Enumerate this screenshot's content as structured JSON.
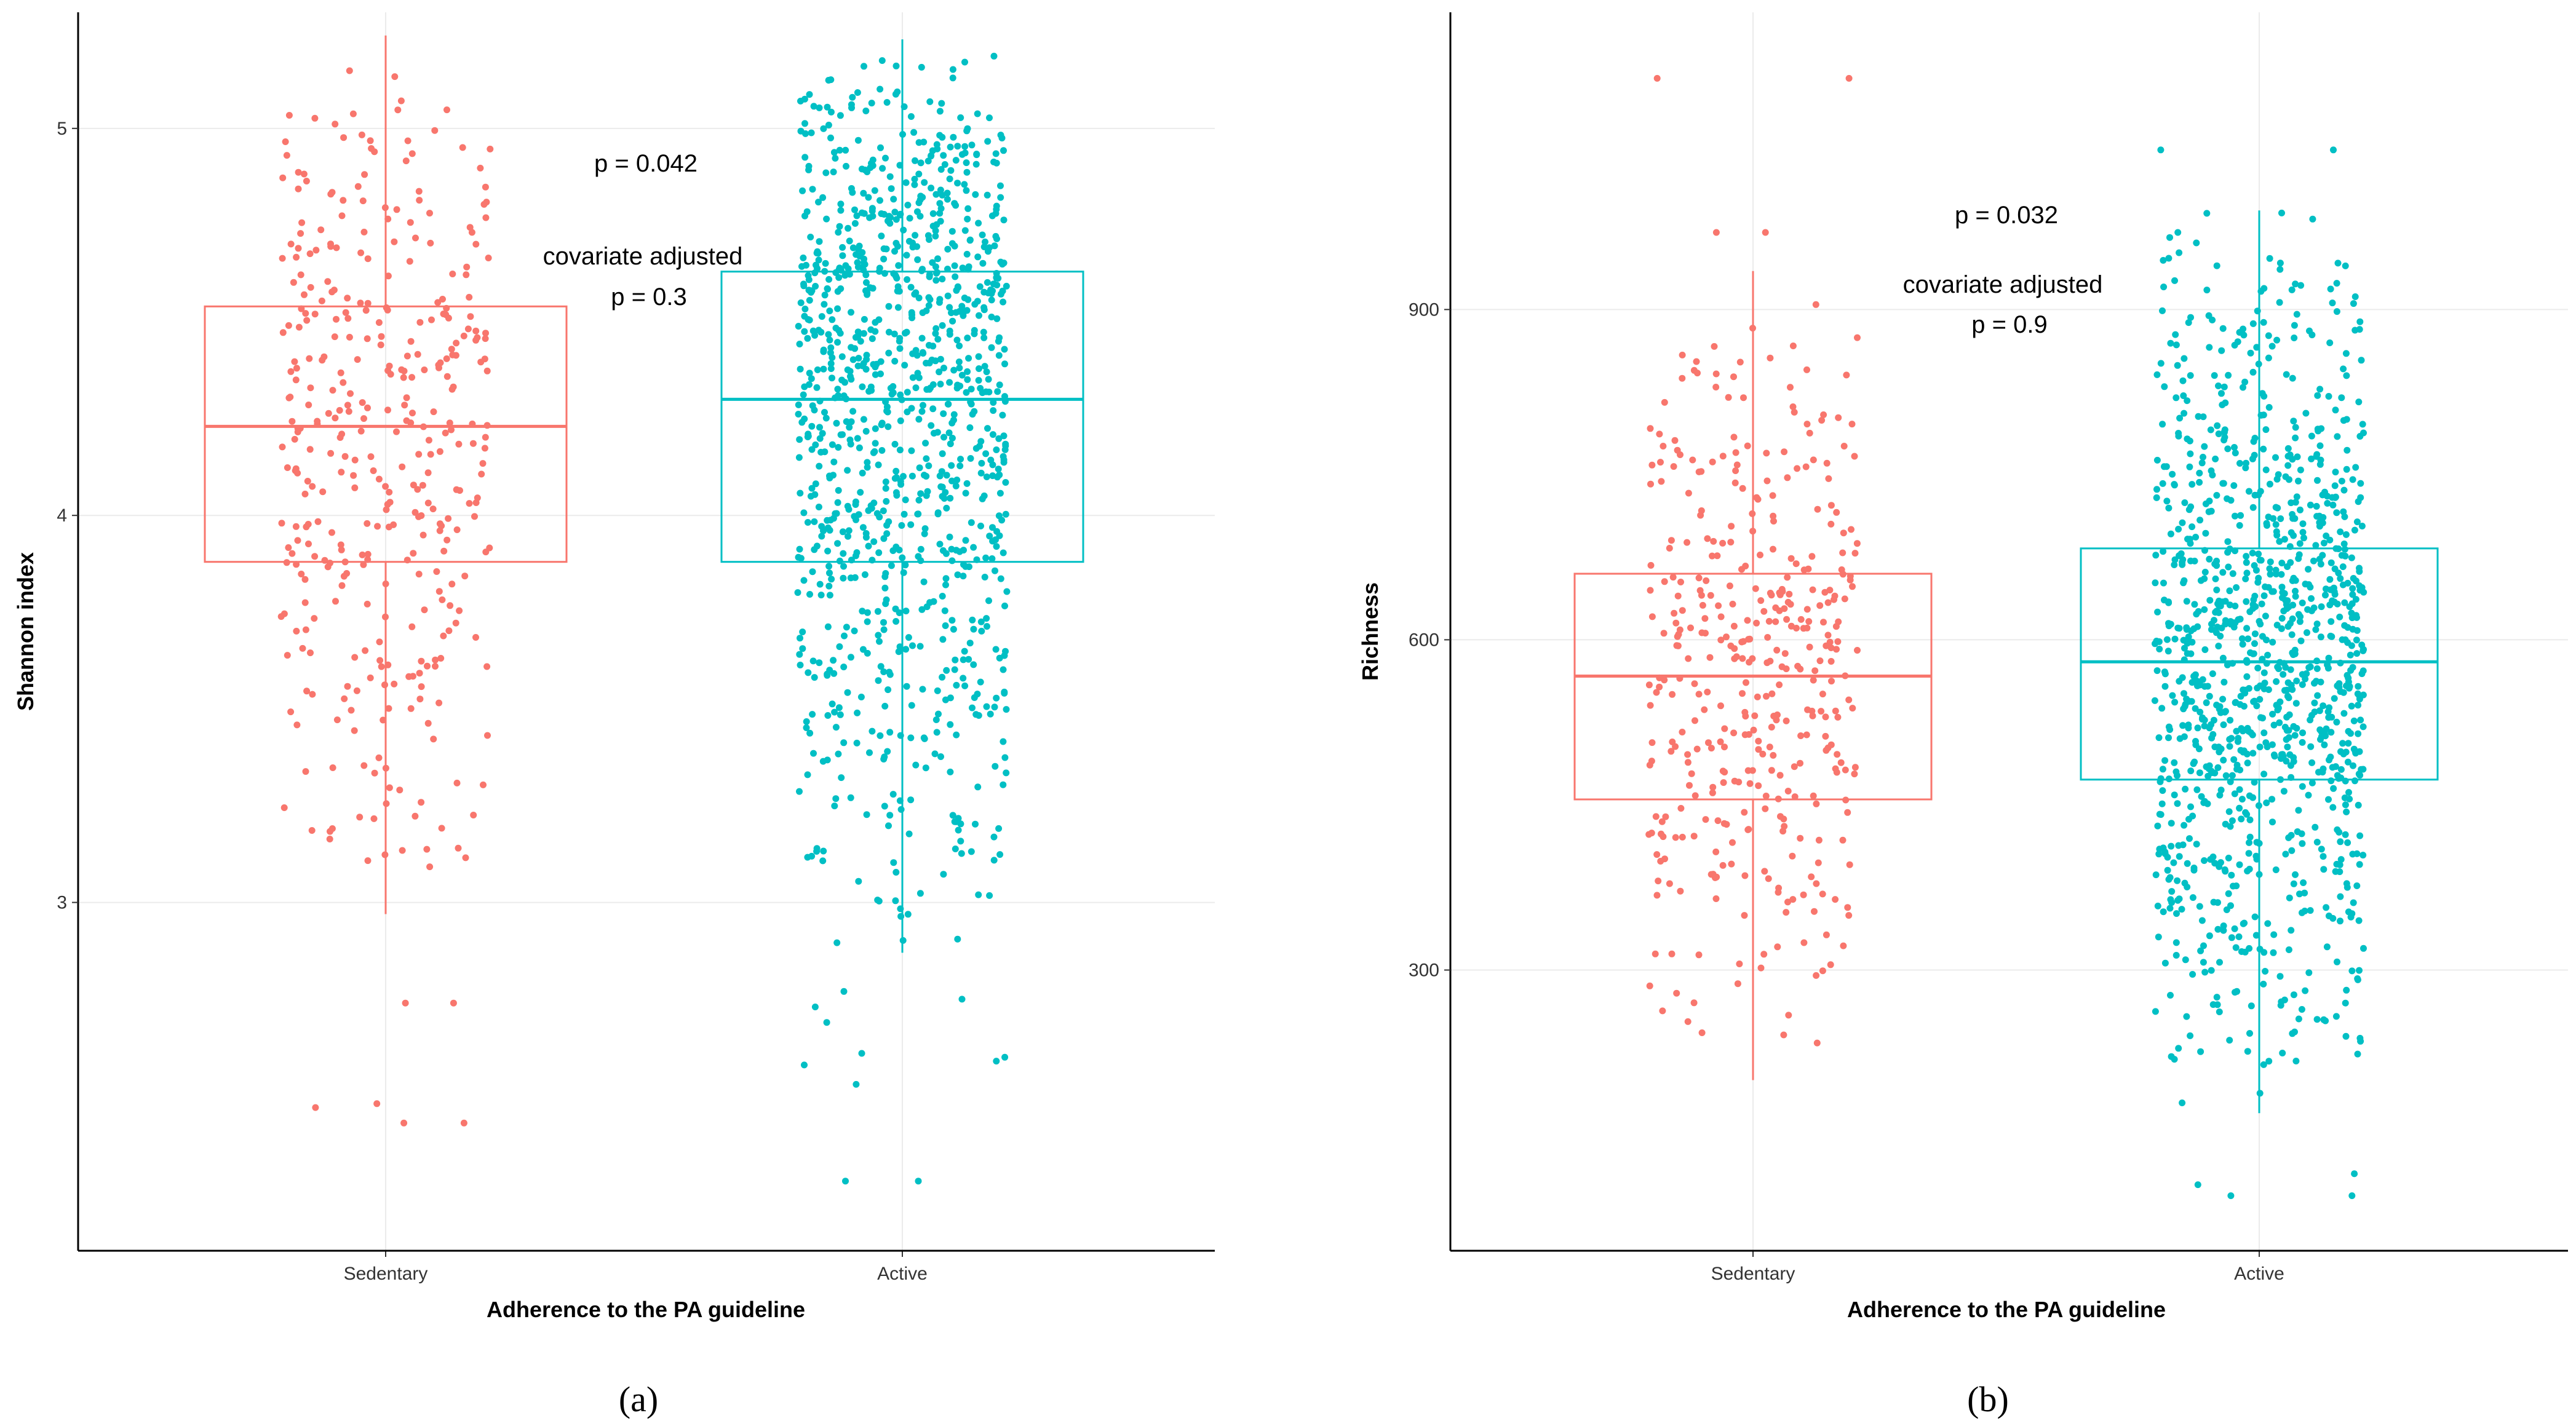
{
  "colors": {
    "sedentary": "#F8766D",
    "active": "#00BFC4",
    "grid": "#EBEBEB",
    "axis": "#000000"
  },
  "chart_data": [
    {
      "type": "boxplot",
      "panel_label": "(a)",
      "xlabel": "Adherence to the PA guideline",
      "ylabel": "Shannon index",
      "categories": [
        "Sedentary",
        "Active"
      ],
      "ylim": [
        2.1,
        5.3
      ],
      "yticks": [
        3,
        4,
        5
      ],
      "ytick_labels": [
        "3",
        "4",
        "5"
      ],
      "annotations": [
        "p = 0.042",
        "covariate adjusted",
        "p = 0.3"
      ],
      "boxes": [
        {
          "group": "Sedentary",
          "min": 2.97,
          "q1": 3.88,
          "median": 4.23,
          "q3": 4.54,
          "max": 5.24,
          "n_points": 380,
          "outliers": [
            2.74,
            2.48,
            2.43,
            2.47,
            2.43,
            2.74
          ]
        },
        {
          "group": "Active",
          "min": 2.87,
          "q1": 3.88,
          "median": 4.3,
          "q3": 4.63,
          "max": 5.23,
          "n_points": 1050,
          "outliers": [
            2.75,
            2.69,
            2.77,
            2.73,
            2.58,
            2.53,
            2.59,
            2.6,
            2.28,
            2.28,
            2.61
          ]
        }
      ]
    },
    {
      "type": "boxplot",
      "panel_label": "(b)",
      "xlabel": "Adherence to the PA guideline",
      "ylabel": "Richness",
      "categories": [
        "Sedentary",
        "Active"
      ],
      "ylim": [
        45,
        1170
      ],
      "yticks": [
        300,
        600,
        900
      ],
      "ytick_labels": [
        "300",
        "600",
        "900"
      ],
      "annotations": [
        "p = 0.032",
        "covariate adjusted",
        "p = 0.9"
      ],
      "boxes": [
        {
          "group": "Sedentary",
          "min": 200,
          "q1": 455,
          "median": 567,
          "q3": 660,
          "max": 935,
          "n_points": 400,
          "outliers": [
            1110,
            1110,
            970,
            970
          ]
        },
        {
          "group": "Active",
          "min": 170,
          "q1": 473,
          "median": 580,
          "q3": 683,
          "max": 990,
          "n_points": 1100,
          "outliers": [
            1045,
            1045,
            95,
            95,
            115,
            105
          ]
        }
      ]
    }
  ]
}
